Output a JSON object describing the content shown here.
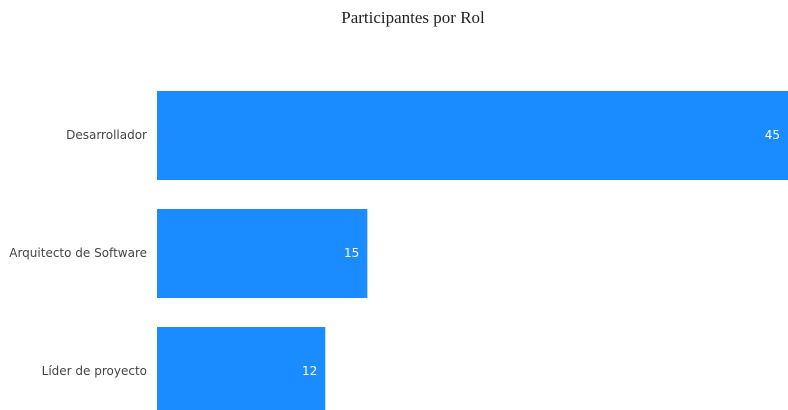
{
  "chart_data": {
    "type": "bar",
    "orientation": "horizontal",
    "title": "Participantes por Rol",
    "categories": [
      "Desarrollador",
      "Arquitecto de Software",
      "Líder de proyecto"
    ],
    "values": [
      45,
      15,
      12
    ],
    "color": "#1a8cff"
  }
}
